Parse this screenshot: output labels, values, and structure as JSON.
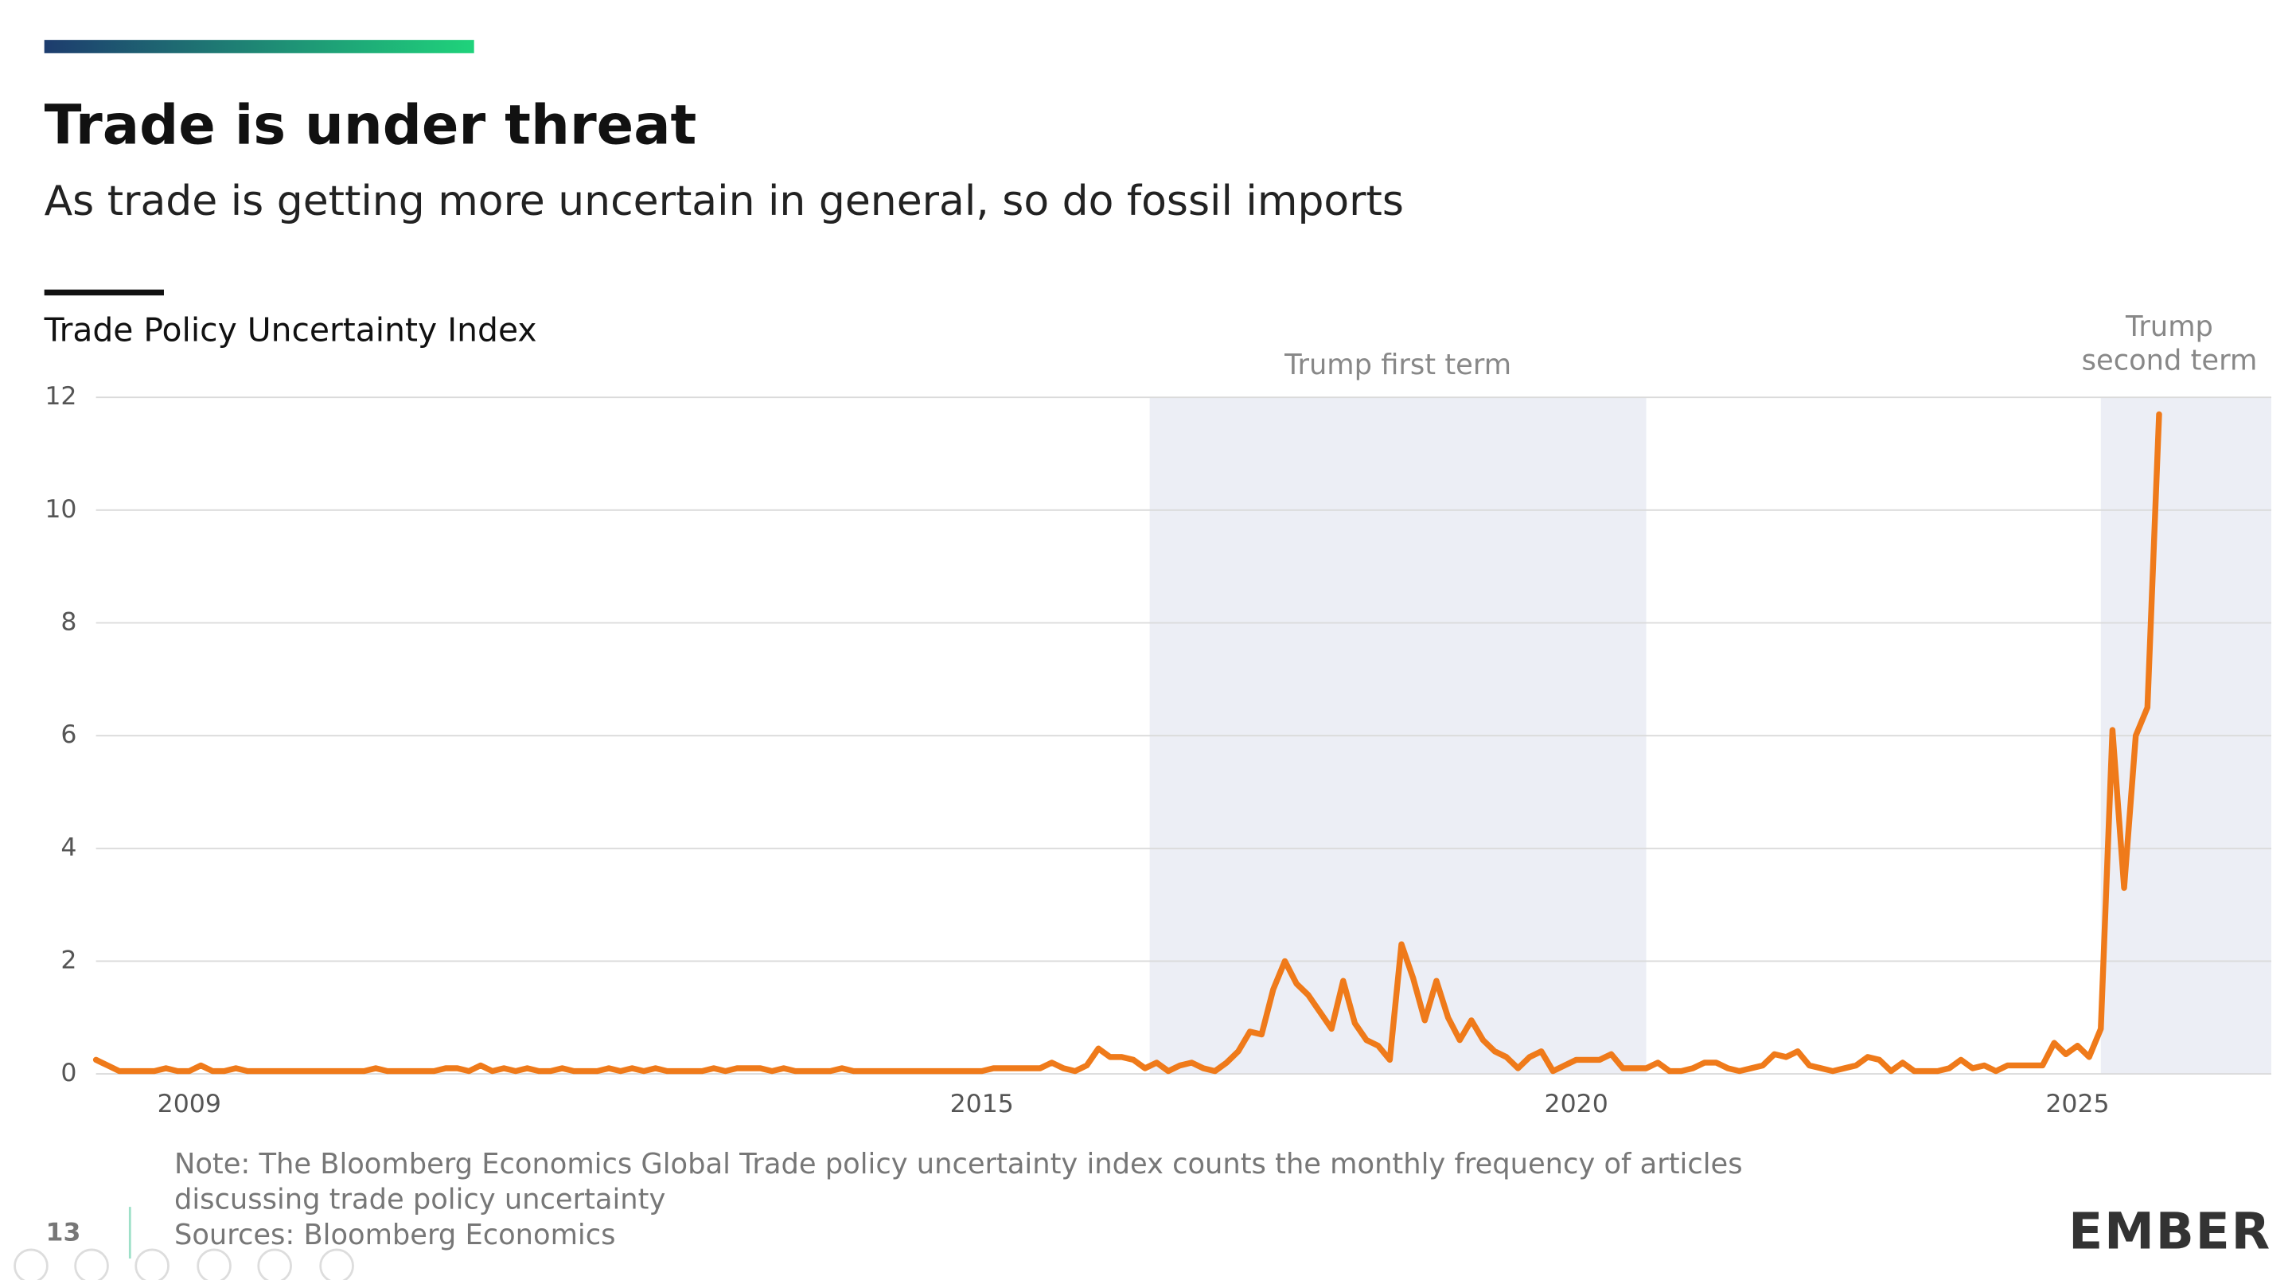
{
  "page_number": "13",
  "logo": "EMBER",
  "chart_data": {
    "type": "line",
    "title": "Trade is under threat",
    "subtitle": "As trade is getting more uncertain in general, so do fossil imports",
    "y_label": "Trade Policy Uncertainty Index",
    "annotations": [
      [
        "Trump first term"
      ],
      [
        "Trump",
        "second term"
      ]
    ],
    "note_lines": [
      "Note: The Bloomberg Economics Global Trade policy uncertainty index counts the monthly frequency of articles",
      "discussing trade policy uncertainty"
    ],
    "source": "Sources: Bloomberg Economics",
    "color": "#ef7a1a",
    "grid": true,
    "ylim": [
      0,
      12
    ],
    "yticks": [
      0,
      2,
      4,
      6,
      8,
      10,
      12
    ],
    "categories": [
      null,
      null,
      null,
      null,
      null,
      null,
      null,
      null,
      "2009",
      null,
      null,
      null,
      null,
      null,
      null,
      null,
      null,
      null,
      null,
      null,
      null,
      null,
      null,
      null,
      null,
      null,
      null,
      null,
      null,
      null,
      null,
      null,
      null,
      null,
      null,
      null,
      null,
      null,
      null,
      null,
      null,
      null,
      null,
      null,
      null,
      null,
      null,
      null,
      null,
      null,
      null,
      null,
      null,
      null,
      null,
      null,
      null,
      null,
      null,
      null,
      null,
      null,
      null,
      null,
      null,
      null,
      null,
      null,
      null,
      null,
      null,
      null,
      null,
      null,
      null,
      null,
      "2015",
      null,
      null,
      null,
      null,
      null,
      null,
      null,
      null,
      null,
      null,
      null,
      null,
      null,
      null,
      null,
      null,
      null,
      null,
      null,
      null,
      null,
      null,
      null,
      null,
      null,
      null,
      null,
      null,
      null,
      null,
      null,
      null,
      null,
      null,
      null,
      null,
      null,
      null,
      null,
      null,
      null,
      null,
      null,
      null,
      null,
      null,
      null,
      null,
      null,
      null,
      "2020",
      null,
      null,
      null,
      null,
      null,
      null,
      null,
      null,
      null,
      null,
      null,
      null,
      null,
      null,
      null,
      null,
      null,
      null,
      null,
      null,
      null,
      null,
      null,
      null,
      null,
      null,
      null,
      null,
      null,
      null,
      null,
      null,
      null,
      null,
      null,
      null,
      null,
      null,
      null,
      null,
      null,
      null,
      "2025",
      null,
      null,
      null,
      null,
      null,
      null,
      null
    ],
    "values": [
      0.25,
      0.15,
      0.05,
      0.05,
      0.05,
      0.05,
      0.1,
      0.05,
      0.05,
      0.15,
      0.05,
      0.05,
      0.1,
      0.05,
      0.05,
      0.05,
      0.05,
      0.05,
      0.05,
      0.05,
      0.05,
      0.05,
      0.05,
      0.05,
      0.1,
      0.05,
      0.05,
      0.05,
      0.05,
      0.05,
      0.1,
      0.1,
      0.05,
      0.15,
      0.05,
      0.1,
      0.05,
      0.1,
      0.05,
      0.05,
      0.1,
      0.05,
      0.05,
      0.05,
      0.1,
      0.05,
      0.1,
      0.05,
      0.1,
      0.05,
      0.05,
      0.05,
      0.05,
      0.1,
      0.05,
      0.1,
      0.1,
      0.1,
      0.05,
      0.1,
      0.05,
      0.05,
      0.05,
      0.05,
      0.1,
      0.05,
      0.05,
      0.05,
      0.05,
      0.05,
      0.05,
      0.05,
      0.05,
      0.05,
      0.05,
      0.05,
      0.05,
      0.1,
      0.1,
      0.1,
      0.1,
      0.1,
      0.2,
      0.1,
      0.05,
      0.15,
      0.45,
      0.3,
      0.3,
      0.25,
      0.1,
      0.2,
      0.05,
      0.15,
      0.2,
      0.1,
      0.05,
      0.2,
      0.4,
      0.75,
      0.7,
      1.5,
      2.0,
      1.6,
      1.4,
      1.1,
      0.8,
      1.65,
      0.9,
      0.6,
      0.5,
      0.25,
      2.3,
      1.7,
      0.95,
      1.65,
      1.0,
      0.6,
      0.95,
      0.6,
      0.4,
      0.3,
      0.1,
      0.3,
      0.4,
      0.05,
      0.15,
      0.25,
      0.25,
      0.25,
      0.35,
      0.1,
      0.1,
      0.1,
      0.2,
      0.05,
      0.05,
      0.1,
      0.2,
      0.2,
      0.1,
      0.05,
      0.1,
      0.15,
      0.35,
      0.3,
      0.4,
      0.15,
      0.1,
      0.05,
      0.1,
      0.15,
      0.3,
      0.25,
      0.05,
      0.2,
      0.05,
      0.05,
      0.05,
      0.1,
      0.25,
      0.1,
      0.15,
      0.05,
      0.15,
      0.15,
      0.15,
      0.15,
      0.55,
      0.35,
      0.5,
      0.3,
      0.8,
      6.1,
      3.3,
      6.0,
      6.5,
      11.7
    ]
  }
}
